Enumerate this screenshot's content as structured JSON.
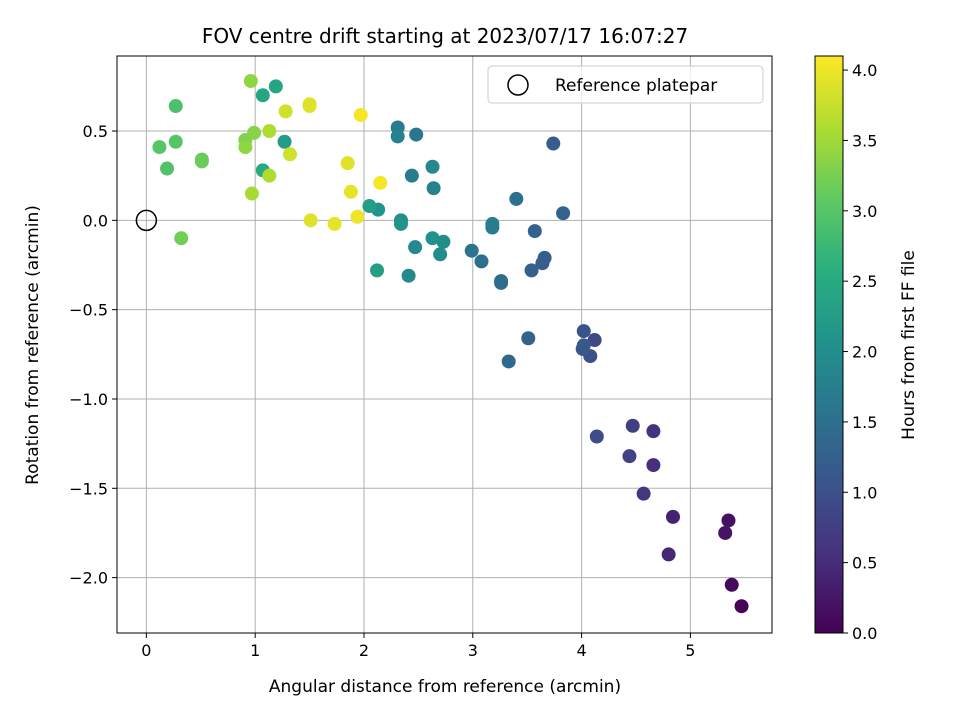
{
  "chart_data": {
    "type": "scatter",
    "title": "FOV centre drift starting at 2023/07/17 16:07:27",
    "xlabel": "Angular distance from reference (arcmin)",
    "ylabel": "Rotation from reference (arcmin)",
    "xlim": [
      -0.27,
      5.75
    ],
    "ylim": [
      -2.31,
      0.92
    ],
    "xticks": [
      0,
      1,
      2,
      3,
      4,
      5
    ],
    "xtick_labels": [
      "0",
      "1",
      "2",
      "3",
      "4",
      "5"
    ],
    "yticks": [
      -2.0,
      -1.5,
      -1.0,
      -0.5,
      0.0,
      0.5
    ],
    "ytick_labels": [
      "−2.0",
      "−1.5",
      "−1.0",
      "−0.5",
      "0.0",
      "0.5"
    ],
    "grid": true,
    "legend": {
      "position": "top-right",
      "entries": [
        "Reference platepar"
      ]
    },
    "reference_point": {
      "x": 0.0,
      "y": 0.0
    },
    "colorbar": {
      "label": "Hours from first FF file",
      "colormap": "viridis",
      "range": [
        0.0,
        4.1
      ],
      "ticks": [
        0.0,
        0.5,
        1.0,
        1.5,
        2.0,
        2.5,
        3.0,
        3.5,
        4.0
      ],
      "tick_labels": [
        "0.0",
        "0.5",
        "1.0",
        "1.5",
        "2.0",
        "2.5",
        "3.0",
        "3.5",
        "4.0"
      ]
    },
    "points": [
      {
        "x": 5.47,
        "y": -2.16,
        "h": 0.05
      },
      {
        "x": 5.38,
        "y": -2.04,
        "h": 0.1
      },
      {
        "x": 5.35,
        "y": -1.68,
        "h": 0.2
      },
      {
        "x": 5.32,
        "y": -1.75,
        "h": 0.22
      },
      {
        "x": 4.84,
        "y": -1.66,
        "h": 0.4
      },
      {
        "x": 4.8,
        "y": -1.87,
        "h": 0.45
      },
      {
        "x": 4.66,
        "y": -1.37,
        "h": 0.55
      },
      {
        "x": 4.66,
        "y": -1.18,
        "h": 0.6
      },
      {
        "x": 4.57,
        "y": -1.53,
        "h": 0.65
      },
      {
        "x": 4.47,
        "y": -1.15,
        "h": 0.75
      },
      {
        "x": 4.44,
        "y": -1.32,
        "h": 0.8
      },
      {
        "x": 4.14,
        "y": -1.21,
        "h": 0.95
      },
      {
        "x": 4.12,
        "y": -0.67,
        "h": 0.9
      },
      {
        "x": 4.08,
        "y": -0.76,
        "h": 1.0
      },
      {
        "x": 4.02,
        "y": -0.62,
        "h": 1.05
      },
      {
        "x": 4.02,
        "y": -0.7,
        "h": 1.1
      },
      {
        "x": 4.01,
        "y": -0.72,
        "h": 1.12
      },
      {
        "x": 3.51,
        "y": -0.66,
        "h": 1.3
      },
      {
        "x": 3.33,
        "y": -0.79,
        "h": 1.4
      },
      {
        "x": 3.64,
        "y": -0.24,
        "h": 1.2
      },
      {
        "x": 3.66,
        "y": -0.21,
        "h": 1.22
      },
      {
        "x": 3.54,
        "y": -0.28,
        "h": 1.25
      },
      {
        "x": 3.57,
        "y": -0.06,
        "h": 1.3
      },
      {
        "x": 3.83,
        "y": 0.04,
        "h": 1.3
      },
      {
        "x": 3.74,
        "y": 0.43,
        "h": 1.2
      },
      {
        "x": 3.4,
        "y": 0.12,
        "h": 1.5
      },
      {
        "x": 3.26,
        "y": -0.34,
        "h": 1.4
      },
      {
        "x": 3.26,
        "y": -0.35,
        "h": 1.45
      },
      {
        "x": 3.08,
        "y": -0.23,
        "h": 1.5
      },
      {
        "x": 2.99,
        "y": -0.17,
        "h": 1.55
      },
      {
        "x": 3.18,
        "y": -0.02,
        "h": 1.8
      },
      {
        "x": 3.18,
        "y": -0.04,
        "h": 1.7
      },
      {
        "x": 2.48,
        "y": 0.48,
        "h": 1.6
      },
      {
        "x": 2.31,
        "y": 0.52,
        "h": 1.7
      },
      {
        "x": 2.31,
        "y": 0.47,
        "h": 1.8
      },
      {
        "x": 2.44,
        "y": 0.25,
        "h": 1.7
      },
      {
        "x": 2.63,
        "y": 0.3,
        "h": 1.9
      },
      {
        "x": 2.64,
        "y": 0.18,
        "h": 1.8
      },
      {
        "x": 2.73,
        "y": -0.12,
        "h": 2.0
      },
      {
        "x": 2.63,
        "y": -0.1,
        "h": 2.05
      },
      {
        "x": 2.7,
        "y": -0.19,
        "h": 2.0
      },
      {
        "x": 2.47,
        "y": -0.15,
        "h": 1.9
      },
      {
        "x": 2.41,
        "y": -0.31,
        "h": 1.9
      },
      {
        "x": 2.12,
        "y": -0.28,
        "h": 2.3
      },
      {
        "x": 2.34,
        "y": 0.0,
        "h": 2.0
      },
      {
        "x": 2.34,
        "y": -0.02,
        "h": 2.1
      },
      {
        "x": 2.13,
        "y": 0.06,
        "h": 2.1
      },
      {
        "x": 2.05,
        "y": 0.08,
        "h": 2.3
      },
      {
        "x": 1.27,
        "y": 0.44,
        "h": 2.25
      },
      {
        "x": 1.19,
        "y": 0.75,
        "h": 2.4
      },
      {
        "x": 1.07,
        "y": 0.7,
        "h": 2.4
      },
      {
        "x": 1.07,
        "y": 0.28,
        "h": 2.5
      },
      {
        "x": 0.27,
        "y": 0.64,
        "h": 2.9
      },
      {
        "x": 0.27,
        "y": 0.44,
        "h": 3.0
      },
      {
        "x": 0.12,
        "y": 0.41,
        "h": 3.0
      },
      {
        "x": 0.19,
        "y": 0.29,
        "h": 2.95
      },
      {
        "x": 0.51,
        "y": 0.34,
        "h": 3.1
      },
      {
        "x": 0.51,
        "y": 0.33,
        "h": 3.15
      },
      {
        "x": 0.32,
        "y": -0.1,
        "h": 3.2
      },
      {
        "x": 0.96,
        "y": 0.78,
        "h": 3.4
      },
      {
        "x": 0.91,
        "y": 0.45,
        "h": 3.3
      },
      {
        "x": 0.99,
        "y": 0.49,
        "h": 3.35
      },
      {
        "x": 0.91,
        "y": 0.41,
        "h": 3.4
      },
      {
        "x": 1.13,
        "y": 0.5,
        "h": 3.6
      },
      {
        "x": 1.13,
        "y": 0.25,
        "h": 3.6
      },
      {
        "x": 0.97,
        "y": 0.15,
        "h": 3.55
      },
      {
        "x": 1.28,
        "y": 0.61,
        "h": 3.8
      },
      {
        "x": 1.32,
        "y": 0.37,
        "h": 3.8
      },
      {
        "x": 1.5,
        "y": 0.65,
        "h": 3.9
      },
      {
        "x": 1.5,
        "y": 0.64,
        "h": 3.9
      },
      {
        "x": 1.51,
        "y": 0.0,
        "h": 3.9
      },
      {
        "x": 1.73,
        "y": -0.02,
        "h": 3.95
      },
      {
        "x": 1.85,
        "y": 0.32,
        "h": 3.9
      },
      {
        "x": 1.88,
        "y": 0.16,
        "h": 3.95
      },
      {
        "x": 1.94,
        "y": 0.02,
        "h": 4.0
      },
      {
        "x": 1.97,
        "y": 0.59,
        "h": 4.05
      },
      {
        "x": 2.15,
        "y": 0.21,
        "h": 4.05
      }
    ]
  }
}
